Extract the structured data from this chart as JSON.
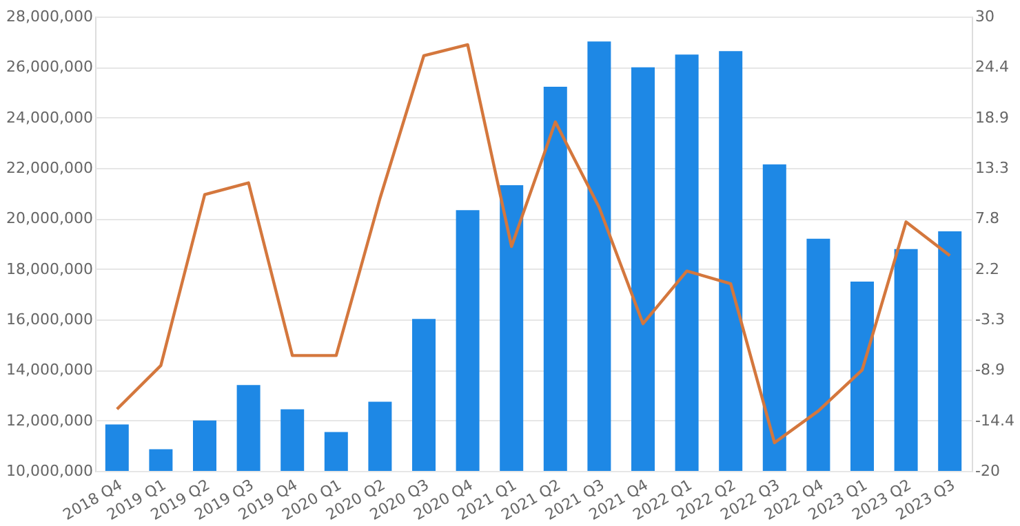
{
  "chart_data": {
    "type": "bar",
    "categories": [
      "2018 Q4",
      "2019 Q1",
      "2019 Q2",
      "2019 Q3",
      "2019 Q4",
      "2020 Q1",
      "2020 Q2",
      "2020 Q3",
      "2020 Q4",
      "2021 Q1",
      "2021 Q2",
      "2021 Q3",
      "2021 Q4",
      "2022 Q1",
      "2022 Q2",
      "2022 Q3",
      "2022 Q4",
      "2023 Q1",
      "2023 Q2",
      "2023 Q3"
    ],
    "series": [
      {
        "color": "#1e88e5",
        "values": [
          11840000,
          10860000,
          12000000,
          13400000,
          12440000,
          11540000,
          12740000,
          16020000,
          20330000,
          21320000,
          25220000,
          27010000,
          25990000,
          26490000,
          26630000,
          22140000,
          19200000,
          17500000,
          18790000,
          19490000
        ]
      },
      {
        "type": "line",
        "axis": "y2",
        "color": "#d4773d",
        "values": [
          -13.2,
          -8.4,
          10.4,
          11.7,
          -7.3,
          -7.3,
          10.0,
          25.7,
          26.9,
          4.7,
          18.4,
          9.0,
          -3.8,
          2.0,
          0.6,
          -16.9,
          -13.4,
          -8.9,
          7.4,
          3.7
        ]
      }
    ],
    "ylim": [
      10000000,
      28000000
    ],
    "yticks": [
      {
        "value": 10000000,
        "label": "10,000,000"
      },
      {
        "value": 12000000,
        "label": "12,000,000"
      },
      {
        "value": 14000000,
        "label": "14,000,000"
      },
      {
        "value": 16000000,
        "label": "16,000,000"
      },
      {
        "value": 18000000,
        "label": "18,000,000"
      },
      {
        "value": 20000000,
        "label": "20,000,000"
      },
      {
        "value": 22000000,
        "label": "22,000,000"
      },
      {
        "value": 24000000,
        "label": "24,000,000"
      },
      {
        "value": 26000000,
        "label": "26,000,000"
      },
      {
        "value": 28000000,
        "label": "28,000,000"
      }
    ],
    "y2lim": [
      -20,
      30
    ],
    "y2ticks": [
      -20,
      {
        "value": -14.444,
        "label": "-14.4"
      },
      {
        "value": -8.889,
        "label": "-8.9"
      },
      {
        "value": -3.333,
        "label": "-3.3"
      },
      {
        "value": 2.222,
        "label": "2.2"
      },
      {
        "value": 7.778,
        "label": "7.8"
      },
      {
        "value": 13.333,
        "label": "13.3"
      },
      {
        "value": 18.889,
        "label": "18.9"
      },
      {
        "value": 24.444,
        "label": "24.4"
      },
      30
    ],
    "grid": "y",
    "marker": "none",
    "line_style": "solid"
  }
}
